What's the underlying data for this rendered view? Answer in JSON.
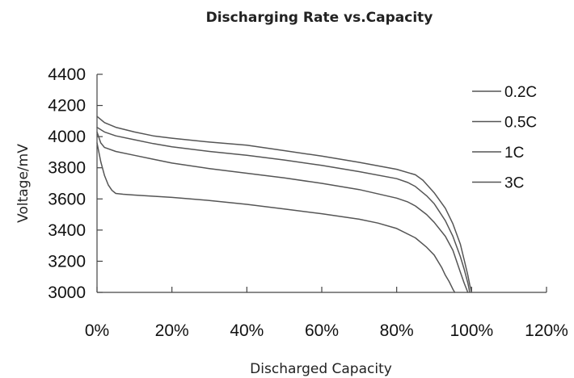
{
  "chart_data": {
    "type": "line",
    "title": "Discharging Rate vs.Capacity",
    "xlabel": "Discharged Capacity",
    "ylabel": "Voltage/mV",
    "xlim": [
      0,
      120
    ],
    "ylim": [
      3000,
      4400
    ],
    "x_ticks": [
      "0%",
      "20%",
      "40%",
      "60%",
      "80%",
      "100%",
      "120%"
    ],
    "x_tick_values": [
      0,
      20,
      40,
      60,
      80,
      100,
      120
    ],
    "y_ticks": [
      "3000",
      "3200",
      "3400",
      "3600",
      "3800",
      "4000",
      "4200",
      "4400"
    ],
    "y_tick_values": [
      3000,
      3200,
      3400,
      3600,
      3800,
      4000,
      4200,
      4400
    ],
    "grid": false,
    "legend_position": "right",
    "line_color": "#555555",
    "series": [
      {
        "name": "0.2C",
        "x": [
          0,
          2,
          5,
          10,
          15,
          20,
          30,
          40,
          50,
          60,
          70,
          80,
          85,
          87,
          90,
          93,
          95,
          97,
          98,
          99,
          99.5,
          100
        ],
        "y": [
          4130,
          4090,
          4060,
          4030,
          4005,
          3990,
          3965,
          3945,
          3910,
          3875,
          3835,
          3790,
          3755,
          3720,
          3640,
          3540,
          3440,
          3310,
          3210,
          3110,
          3050,
          3000
        ]
      },
      {
        "name": "0.5C",
        "x": [
          0,
          2,
          5,
          10,
          15,
          20,
          30,
          40,
          50,
          60,
          70,
          80,
          83,
          85,
          88,
          90,
          93,
          95,
          97,
          98,
          99,
          99.5
        ],
        "y": [
          4060,
          4030,
          4005,
          3980,
          3955,
          3935,
          3905,
          3880,
          3850,
          3815,
          3775,
          3730,
          3705,
          3680,
          3620,
          3570,
          3460,
          3360,
          3230,
          3150,
          3060,
          3000
        ]
      },
      {
        "name": "1C",
        "x": [
          0,
          1,
          2,
          5,
          10,
          15,
          20,
          30,
          40,
          50,
          60,
          70,
          80,
          83,
          85,
          88,
          90,
          93,
          95,
          96,
          97,
          98,
          99
        ],
        "y": [
          4030,
          3960,
          3930,
          3905,
          3880,
          3855,
          3830,
          3795,
          3765,
          3735,
          3700,
          3660,
          3605,
          3580,
          3555,
          3500,
          3450,
          3360,
          3270,
          3200,
          3130,
          3060,
          3000
        ]
      },
      {
        "name": "3C",
        "x": [
          0,
          1,
          2,
          3,
          4,
          5,
          7,
          10,
          20,
          30,
          40,
          50,
          60,
          70,
          75,
          80,
          85,
          88,
          90,
          92,
          93,
          94,
          95,
          95.5
        ],
        "y": [
          3960,
          3840,
          3750,
          3690,
          3655,
          3635,
          3630,
          3625,
          3610,
          3590,
          3565,
          3535,
          3505,
          3470,
          3445,
          3410,
          3350,
          3290,
          3240,
          3160,
          3110,
          3070,
          3020,
          3000
        ]
      }
    ]
  }
}
